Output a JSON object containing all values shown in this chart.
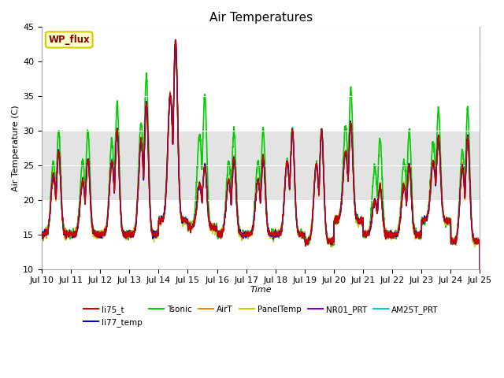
{
  "title": "Air Temperatures",
  "xlabel": "Time",
  "ylabel": "Air Temperature (C)",
  "ylim": [
    10,
    45
  ],
  "xlim": [
    0,
    15
  ],
  "x_tick_labels": [
    "Jul 10",
    "Jul 11",
    "Jul 12",
    "Jul 13",
    "Jul 14",
    "Jul 15",
    "Jul 16",
    "Jul 17",
    "Jul 18",
    "Jul 19",
    "Jul 20",
    "Jul 21",
    "Jul 22",
    "Jul 23",
    "Jul 24",
    "Jul 25"
  ],
  "shaded_band": [
    20,
    30
  ],
  "wp_flux_label": "WP_flux",
  "series": {
    "li75_t": {
      "color": "#cc0000",
      "lw": 1.0
    },
    "li77_temp": {
      "color": "#0000cc",
      "lw": 1.0
    },
    "Tsonic": {
      "color": "#00cc00",
      "lw": 1.2
    },
    "AirT": {
      "color": "#ff8800",
      "lw": 1.0
    },
    "PanelTemp": {
      "color": "#cccc00",
      "lw": 1.0
    },
    "NR01_PRT": {
      "color": "#8800cc",
      "lw": 1.0
    },
    "AM25T_PRT": {
      "color": "#00cccc",
      "lw": 1.0
    }
  },
  "day_peaks": [
    27,
    26,
    30,
    34,
    43,
    25,
    26,
    26,
    30,
    30,
    31,
    22,
    25,
    29,
    29
  ],
  "day_peaks_tsonic": [
    30,
    30,
    34,
    38,
    43,
    35,
    30,
    30,
    30,
    30,
    36,
    29,
    30,
    33,
    33
  ],
  "day_mins": [
    15,
    15,
    15,
    15,
    17,
    16,
    15,
    15,
    15,
    14,
    17,
    15,
    15,
    17,
    14
  ]
}
